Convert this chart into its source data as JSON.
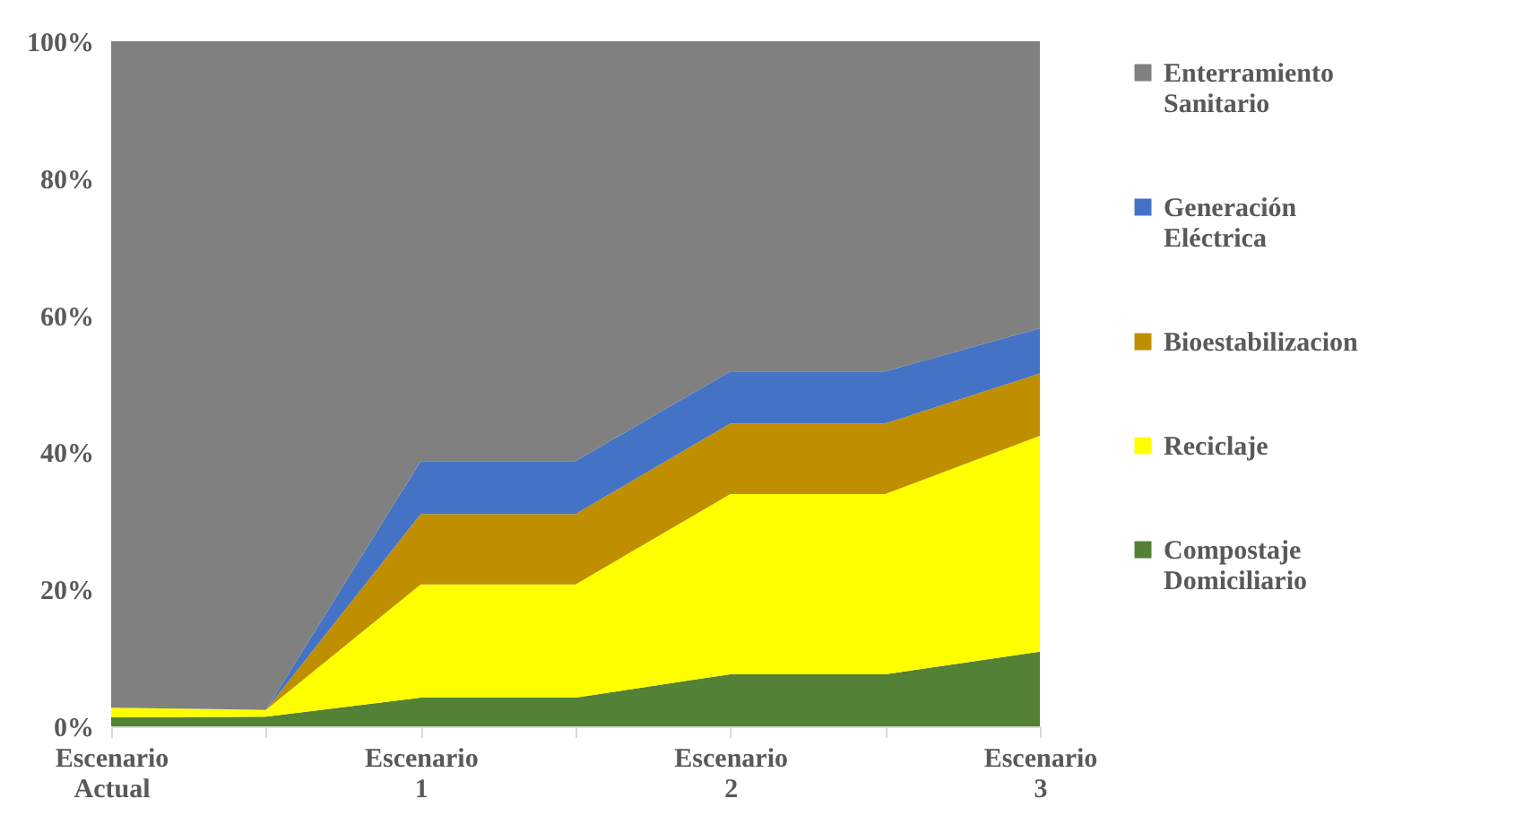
{
  "chart_data": {
    "type": "area",
    "stacked": true,
    "categories": [
      "Escenario Actual",
      null,
      "Escenario 1",
      null,
      "Escenario 2",
      null,
      "Escenario 3"
    ],
    "series": [
      {
        "name": "Compostaje Domiciliario",
        "color": "#538135",
        "values": [
          1.3,
          1.4,
          4.2,
          4.2,
          7.6,
          7.6,
          10.9
        ]
      },
      {
        "name": "Reciclaje",
        "color": "#ffff00",
        "values": [
          1.4,
          1.0,
          16.5,
          16.5,
          26.3,
          26.3,
          31.5
        ]
      },
      {
        "name": "Bioestabilizacion",
        "color": "#bf8f00",
        "values": [
          0,
          0,
          10.3,
          10.3,
          10.3,
          10.3,
          9.1
        ]
      },
      {
        "name": "Generación Eléctrica",
        "color": "#4472c4",
        "values": [
          0,
          0,
          7.7,
          7.7,
          7.6,
          7.6,
          6.6
        ]
      },
      {
        "name": "Enterramiento Sanitario",
        "color": "#808080",
        "values": [
          97.3,
          97.6,
          61.3,
          61.3,
          48.2,
          48.2,
          41.9
        ]
      }
    ],
    "ylim": [
      0,
      100
    ],
    "yticks": [
      {
        "value": 0,
        "label": "0%"
      },
      {
        "value": 20,
        "label": "20%"
      },
      {
        "value": 40,
        "label": "40%"
      },
      {
        "value": 60,
        "label": "60%"
      },
      {
        "value": 80,
        "label": "80%"
      },
      {
        "value": 100,
        "label": "100%"
      }
    ],
    "grid": false,
    "legend": "right"
  }
}
